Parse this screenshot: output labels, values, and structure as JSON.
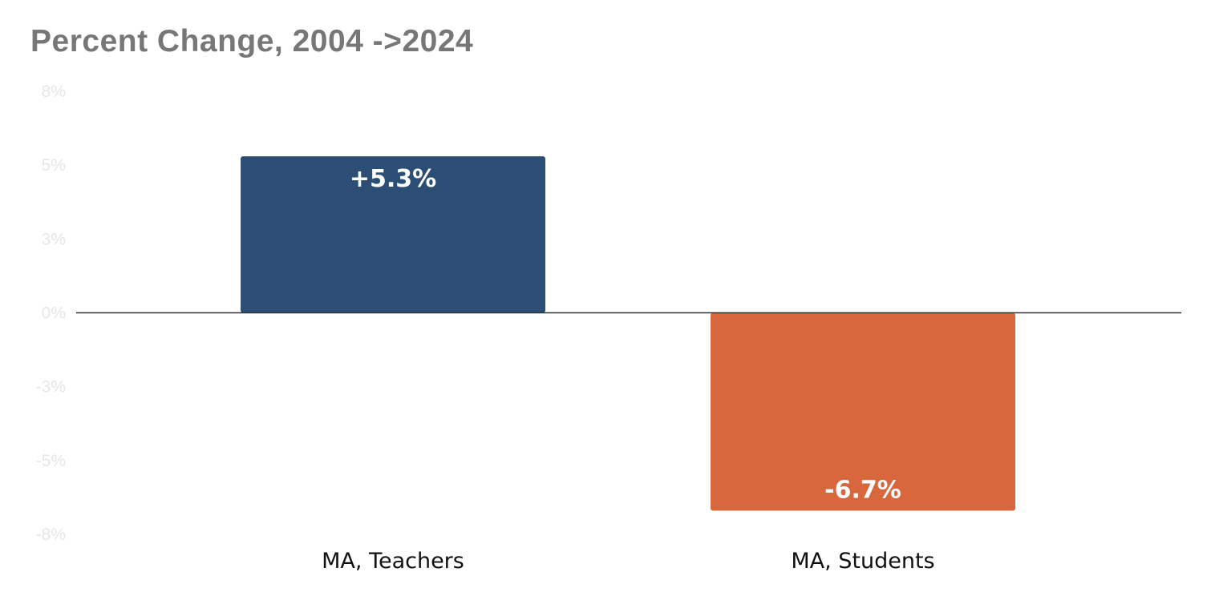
{
  "chart_data": {
    "type": "bar",
    "title": "Percent Change, 2004 ->2024",
    "xlabel": "",
    "ylabel": "",
    "categories": [
      "MA, Teachers",
      "MA, Students"
    ],
    "values": [
      5.3,
      -6.7
    ],
    "data_labels": [
      "+5.3%",
      "-6.7%"
    ],
    "colors": [
      "#2c4e74",
      "#d9673e"
    ],
    "ylim": [
      -7.5,
      7.5
    ],
    "y_ticks": [
      7.5,
      5,
      2.5,
      0,
      -2.5,
      -5,
      -7.5
    ],
    "y_tick_labels": [
      "8%",
      "5%",
      "3%",
      "0%",
      "-3%",
      "-5%",
      "-8%"
    ],
    "grid": false,
    "legend": "none",
    "zero_line_color": "#333333",
    "tick_label_color": "#e6e6e6"
  }
}
